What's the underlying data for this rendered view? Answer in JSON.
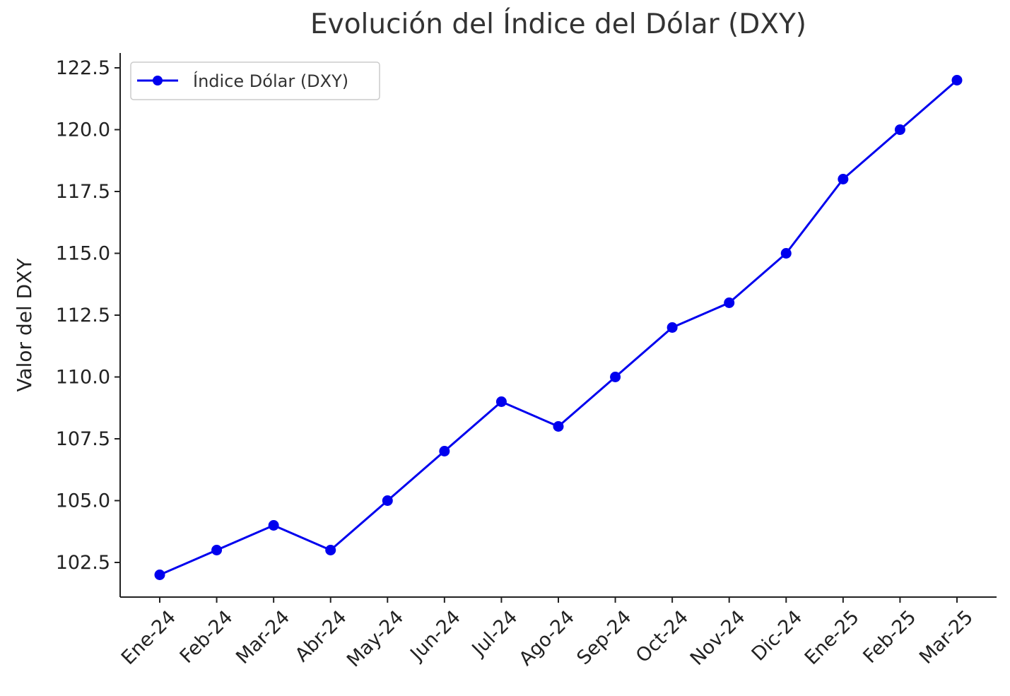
{
  "chart_data": {
    "type": "line",
    "title": "Evolución del Índice del Dólar (DXY)",
    "xlabel": "",
    "ylabel": "Valor del DXY",
    "categories": [
      "Ene-24",
      "Feb-24",
      "Mar-24",
      "Abr-24",
      "May-24",
      "Jun-24",
      "Jul-24",
      "Ago-24",
      "Sep-24",
      "Oct-24",
      "Nov-24",
      "Dic-24",
      "Ene-25",
      "Feb-25",
      "Mar-25"
    ],
    "series": [
      {
        "name": "Índice Dólar (DXY)",
        "values": [
          102,
          103,
          104,
          103,
          105,
          107,
          109,
          108,
          110,
          112,
          113,
          115,
          118,
          120,
          122
        ],
        "color": "#0000ee",
        "marker": "circle"
      }
    ],
    "yticks": [
      "102.5",
      "105.0",
      "107.5",
      "110.0",
      "112.5",
      "115.0",
      "117.5",
      "120.0",
      "122.5"
    ],
    "ylim": [
      101.1,
      123.1
    ],
    "grid": false,
    "legend": "top-left"
  }
}
